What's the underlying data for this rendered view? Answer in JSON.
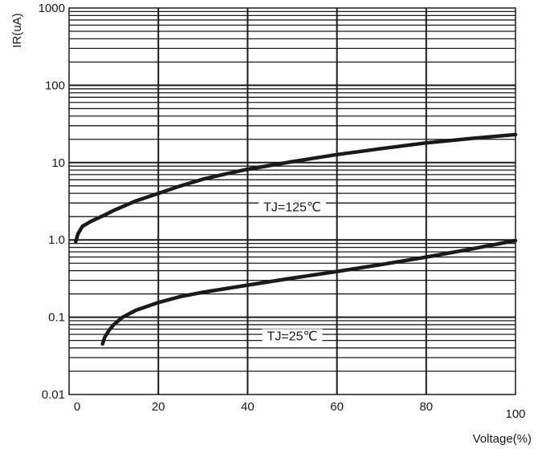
{
  "chart_data": {
    "type": "line",
    "title": "",
    "xlabel": "Voltage(%)",
    "ylabel": "IR(uA)",
    "xlim": [
      0,
      100
    ],
    "ylim": [
      0.01,
      1000
    ],
    "yscale": "log",
    "grid": true,
    "x_ticks": [
      "0",
      "20",
      "40",
      "60",
      "80",
      "100"
    ],
    "y_ticks": [
      "0.01",
      "0.1",
      "1.0",
      "10",
      "100",
      "1000"
    ],
    "series": [
      {
        "name": "TJ=125℃",
        "color": "#1a1a1a",
        "x": [
          1.5,
          2,
          3,
          5,
          8,
          10,
          15,
          20,
          25,
          30,
          35,
          40,
          50,
          60,
          70,
          80,
          90,
          100
        ],
        "y": [
          0.95,
          1.2,
          1.5,
          1.75,
          2.1,
          2.4,
          3.2,
          4.0,
          5.0,
          6.1,
          7.1,
          8.2,
          10.3,
          12.7,
          15.2,
          18.0,
          20.5,
          23.0
        ]
      },
      {
        "name": "TJ=25℃",
        "color": "#1a1a1a",
        "x": [
          7.5,
          8,
          9,
          10,
          12,
          15,
          20,
          25,
          30,
          40,
          50,
          60,
          70,
          80,
          90,
          100
        ],
        "y": [
          0.045,
          0.055,
          0.068,
          0.08,
          0.1,
          0.123,
          0.155,
          0.185,
          0.21,
          0.26,
          0.32,
          0.39,
          0.48,
          0.6,
          0.76,
          0.98
        ]
      }
    ],
    "annotations": [
      {
        "text": "TJ=125℃",
        "x": 50,
        "y": 2.6
      },
      {
        "text": "TJ=25℃",
        "x": 50,
        "y": 0.056
      }
    ]
  }
}
